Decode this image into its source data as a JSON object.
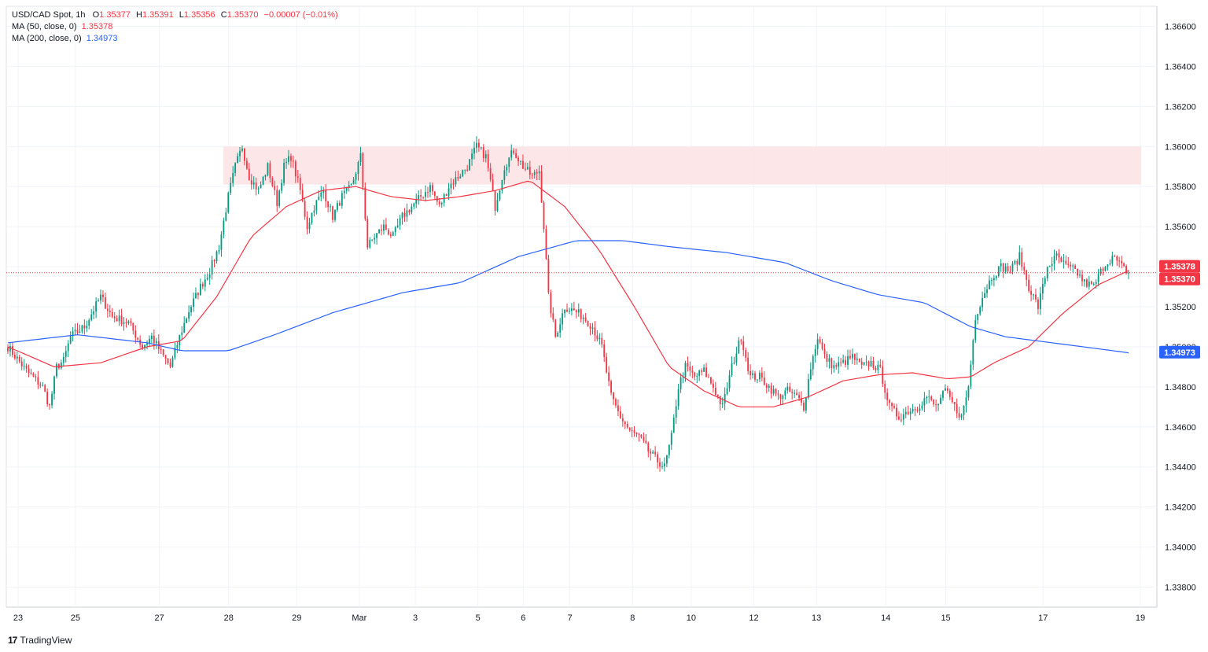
{
  "legend": {
    "symbol": "USD/CAD Spot, 1h",
    "o_label": "O",
    "o": "1.35377",
    "h_label": "H",
    "h": "1.35391",
    "l_label": "L",
    "l": "1.35356",
    "c_label": "C",
    "c": "1.35370",
    "change": "−0.00007 (−0.01%)",
    "ma50_label": "MA (50, close, 0)",
    "ma50_value": "1.35378",
    "ma200_label": "MA (200, close, 0)",
    "ma200_value": "1.34973"
  },
  "branding": {
    "logo": "17",
    "name": "TradingView"
  },
  "colors": {
    "up": "#089981",
    "down": "#f23645",
    "ma50": "#f23645",
    "ma200": "#2962ff",
    "zone": "#fde3e6",
    "grid": "#f0f3fa"
  },
  "chart_data": {
    "type": "candlestick",
    "title": "USD/CAD Spot, 1h",
    "ylim": [
      1.337,
      1.367
    ],
    "y_ticks": [
      "1.33800",
      "1.34000",
      "1.34200",
      "1.34400",
      "1.34600",
      "1.34800",
      "1.35000",
      "1.35200",
      "1.35400",
      "1.35600",
      "1.35800",
      "1.36000",
      "1.36200",
      "1.36400",
      "1.36600"
    ],
    "x_ticks": [
      "23",
      "25",
      "27",
      "28",
      "29",
      "Mar",
      "3",
      "5",
      "6",
      "7",
      "8",
      "10",
      "12",
      "13",
      "14",
      "15",
      "17",
      "19"
    ],
    "resistance_zone": [
      1.3581,
      1.36
    ],
    "price_line": 1.3537,
    "price_tags": [
      "1.35378",
      "1.35370",
      "1.34973"
    ],
    "close_anchors": [
      [
        0,
        1.35
      ],
      [
        8,
        1.3488
      ],
      [
        15,
        1.348
      ],
      [
        18,
        1.347
      ],
      [
        21,
        1.349
      ],
      [
        24,
        1.3493
      ],
      [
        27,
        1.3505
      ],
      [
        33,
        1.351
      ],
      [
        40,
        1.3525
      ],
      [
        45,
        1.3515
      ],
      [
        52,
        1.3512
      ],
      [
        58,
        1.35
      ],
      [
        62,
        1.3505
      ],
      [
        66,
        1.3497
      ],
      [
        70,
        1.349
      ],
      [
        74,
        1.3505
      ],
      [
        78,
        1.3518
      ],
      [
        83,
        1.353
      ],
      [
        87,
        1.3538
      ],
      [
        91,
        1.355
      ],
      [
        95,
        1.3575
      ],
      [
        98,
        1.359
      ],
      [
        101,
        1.36
      ],
      [
        104,
        1.3585
      ],
      [
        108,
        1.3578
      ],
      [
        112,
        1.359
      ],
      [
        116,
        1.3572
      ],
      [
        119,
        1.359
      ],
      [
        122,
        1.3595
      ],
      [
        126,
        1.3578
      ],
      [
        129,
        1.356
      ],
      [
        132,
        1.357
      ],
      [
        136,
        1.3578
      ],
      [
        140,
        1.3565
      ],
      [
        144,
        1.3575
      ],
      [
        148,
        1.358
      ],
      [
        152,
        1.3595
      ],
      [
        155,
        1.355
      ],
      [
        158,
        1.3555
      ],
      [
        162,
        1.356
      ],
      [
        166,
        1.3555
      ],
      [
        170,
        1.3565
      ],
      [
        174,
        1.357
      ],
      [
        178,
        1.3575
      ],
      [
        182,
        1.358
      ],
      [
        186,
        1.357
      ],
      [
        190,
        1.358
      ],
      [
        194,
        1.3585
      ],
      [
        198,
        1.359
      ],
      [
        202,
        1.36
      ],
      [
        206,
        1.3595
      ],
      [
        210,
        1.357
      ],
      [
        214,
        1.359
      ],
      [
        218,
        1.3598
      ],
      [
        222,
        1.359
      ],
      [
        226,
        1.3585
      ],
      [
        229,
        1.3588
      ],
      [
        231,
        1.356
      ],
      [
        233,
        1.3525
      ],
      [
        236,
        1.3505
      ],
      [
        240,
        1.352
      ],
      [
        244,
        1.3518
      ],
      [
        248,
        1.3515
      ],
      [
        252,
        1.351
      ],
      [
        256,
        1.35
      ],
      [
        260,
        1.3475
      ],
      [
        264,
        1.3465
      ],
      [
        268,
        1.3458
      ],
      [
        272,
        1.3455
      ],
      [
        276,
        1.3448
      ],
      [
        280,
        1.3443
      ],
      [
        283,
        1.344
      ],
      [
        286,
        1.3455
      ],
      [
        289,
        1.348
      ],
      [
        292,
        1.349
      ],
      [
        296,
        1.3485
      ],
      [
        300,
        1.3488
      ],
      [
        304,
        1.348
      ],
      [
        308,
        1.347
      ],
      [
        312,
        1.349
      ],
      [
        316,
        1.3505
      ],
      [
        320,
        1.3485
      ],
      [
        324,
        1.3485
      ],
      [
        328,
        1.348
      ],
      [
        332,
        1.3475
      ],
      [
        336,
        1.3478
      ],
      [
        340,
        1.3475
      ],
      [
        343,
        1.347
      ],
      [
        346,
        1.349
      ],
      [
        349,
        1.3505
      ],
      [
        352,
        1.3495
      ],
      [
        356,
        1.349
      ],
      [
        360,
        1.3492
      ],
      [
        364,
        1.3495
      ],
      [
        368,
        1.349
      ],
      [
        372,
        1.3492
      ],
      [
        376,
        1.3488
      ],
      [
        380,
        1.347
      ],
      [
        384,
        1.3465
      ],
      [
        388,
        1.3468
      ],
      [
        392,
        1.347
      ],
      [
        396,
        1.3475
      ],
      [
        400,
        1.347
      ],
      [
        404,
        1.3478
      ],
      [
        408,
        1.347
      ],
      [
        411,
        1.3465
      ],
      [
        414,
        1.348
      ],
      [
        417,
        1.3515
      ],
      [
        420,
        1.3525
      ],
      [
        424,
        1.3535
      ],
      [
        428,
        1.354
      ],
      [
        432,
        1.3538
      ],
      [
        436,
        1.3545
      ],
      [
        440,
        1.353
      ],
      [
        444,
        1.352
      ],
      [
        448,
        1.354
      ],
      [
        452,
        1.3545
      ],
      [
        456,
        1.354
      ],
      [
        460,
        1.3538
      ],
      [
        464,
        1.3532
      ],
      [
        468,
        1.353
      ],
      [
        472,
        1.354
      ],
      [
        476,
        1.3545
      ],
      [
        480,
        1.354
      ],
      [
        483,
        1.3537
      ]
    ],
    "ma50_anchors": [
      [
        0,
        1.35
      ],
      [
        20,
        1.349
      ],
      [
        40,
        1.3492
      ],
      [
        60,
        1.35
      ],
      [
        75,
        1.3503
      ],
      [
        90,
        1.3525
      ],
      [
        105,
        1.3555
      ],
      [
        120,
        1.357
      ],
      [
        135,
        1.3578
      ],
      [
        150,
        1.358
      ],
      [
        165,
        1.3575
      ],
      [
        180,
        1.3573
      ],
      [
        195,
        1.3575
      ],
      [
        210,
        1.3578
      ],
      [
        225,
        1.3583
      ],
      [
        240,
        1.357
      ],
      [
        255,
        1.3548
      ],
      [
        270,
        1.352
      ],
      [
        285,
        1.349
      ],
      [
        300,
        1.3478
      ],
      [
        315,
        1.347
      ],
      [
        330,
        1.347
      ],
      [
        345,
        1.3475
      ],
      [
        360,
        1.3483
      ],
      [
        375,
        1.3486
      ],
      [
        390,
        1.3487
      ],
      [
        405,
        1.3484
      ],
      [
        415,
        1.3485
      ],
      [
        425,
        1.3492
      ],
      [
        440,
        1.35
      ],
      [
        455,
        1.3517
      ],
      [
        470,
        1.3531
      ],
      [
        483,
        1.3538
      ]
    ],
    "ma200_anchors": [
      [
        0,
        1.3502
      ],
      [
        30,
        1.3506
      ],
      [
        60,
        1.3502
      ],
      [
        75,
        1.3498
      ],
      [
        95,
        1.3498
      ],
      [
        115,
        1.3506
      ],
      [
        140,
        1.3517
      ],
      [
        170,
        1.3527
      ],
      [
        195,
        1.3532
      ],
      [
        220,
        1.3545
      ],
      [
        245,
        1.3553
      ],
      [
        265,
        1.3553
      ],
      [
        285,
        1.355
      ],
      [
        310,
        1.3547
      ],
      [
        335,
        1.3542
      ],
      [
        355,
        1.3533
      ],
      [
        375,
        1.3526
      ],
      [
        395,
        1.3522
      ],
      [
        415,
        1.351
      ],
      [
        430,
        1.3505
      ],
      [
        450,
        1.3502
      ],
      [
        470,
        1.3499
      ],
      [
        483,
        1.3497
      ]
    ]
  }
}
